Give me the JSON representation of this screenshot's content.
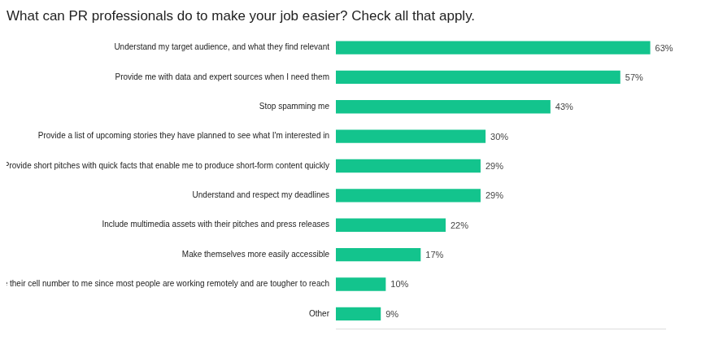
{
  "chart_data": {
    "type": "bar",
    "title": "What can PR professionals do to make your job easier? Check all that apply.",
    "orientation": "horizontal",
    "categories": [
      "Understand my target audience, and what they find relevant",
      "Provide me with data and expert sources when I need them",
      "Stop spamming me",
      "Provide a list of upcoming stories they have planned to see what I'm interested in",
      "Provide short pitches with quick facts that enable me to produce short-form content quickly",
      "Understand and respect my deadlines",
      "Include multimedia assets with their pitches and press releases",
      "Make themselves more easily accessible",
      "Provide their cell number to me since most people are working remotely and are tougher to reach",
      "Other"
    ],
    "values": [
      63,
      57,
      43,
      30,
      29,
      29,
      22,
      17,
      10,
      9
    ],
    "value_labels": [
      "63%",
      "57%",
      "43%",
      "30%",
      "29%",
      "29%",
      "22%",
      "17%",
      "10%",
      "9%"
    ],
    "color": "#13c48d",
    "xlim": [
      0,
      66
    ],
    "grid": false,
    "data_labels": true,
    "tick_labels": "y"
  }
}
